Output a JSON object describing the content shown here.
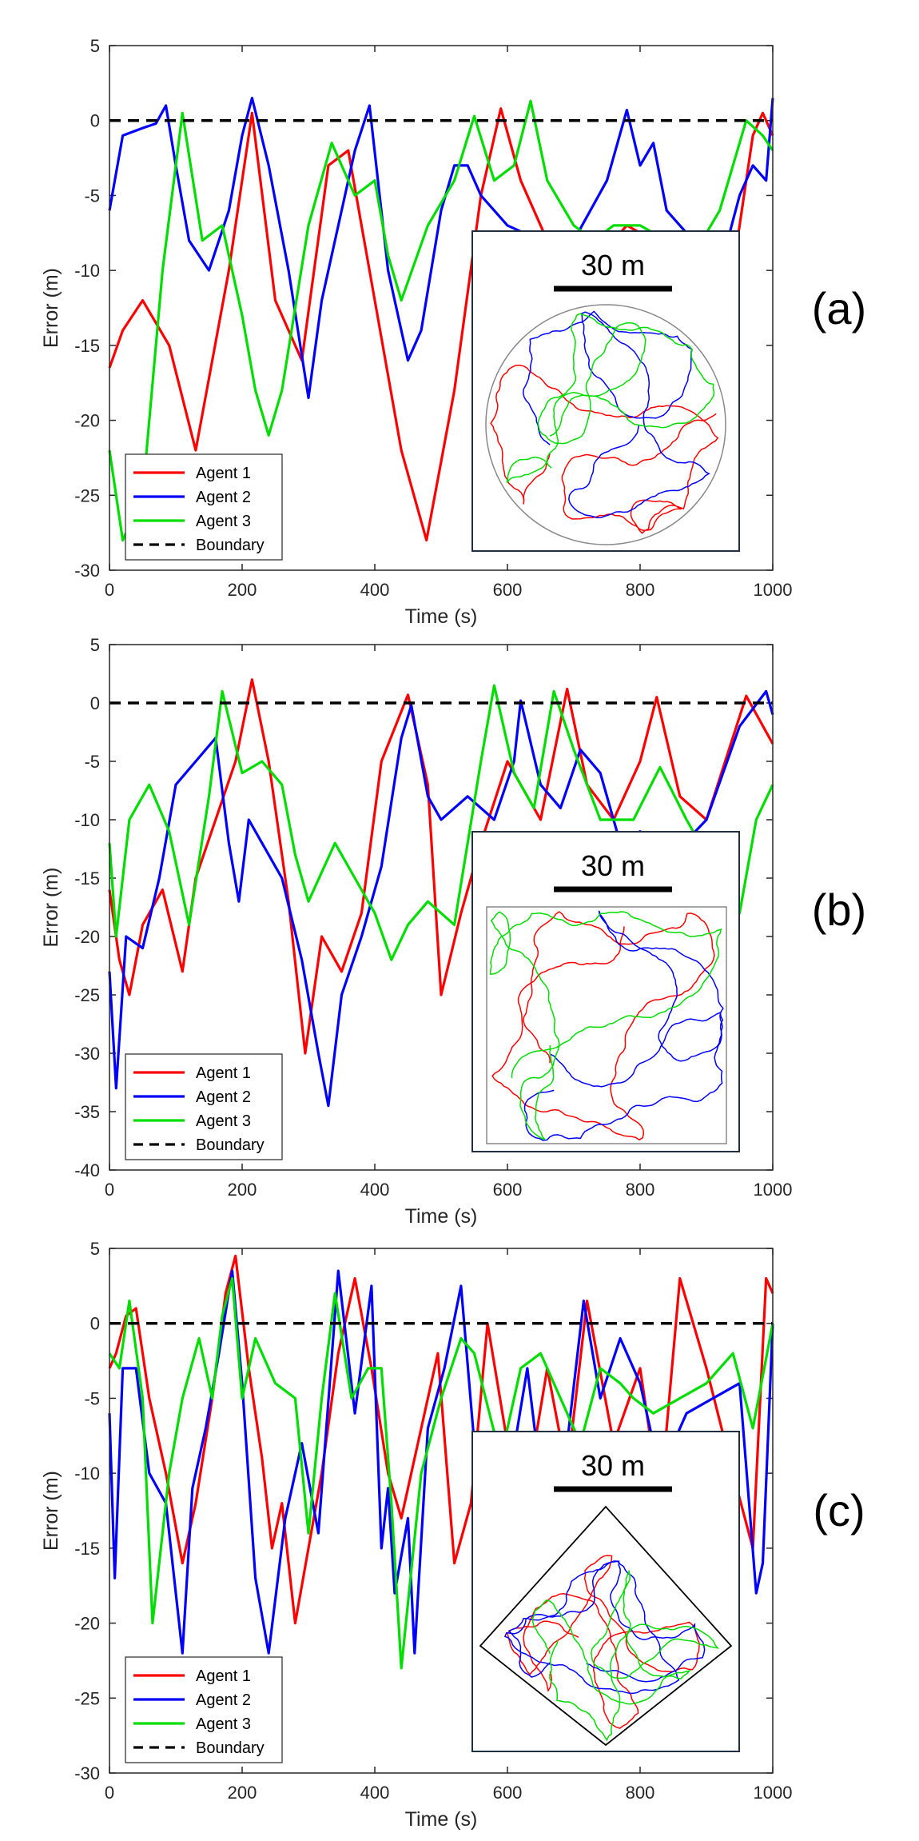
{
  "chart_data": [
    {
      "type": "line",
      "panel_label": "(a)",
      "xlabel": "Time (s)",
      "ylabel": "Error (m)",
      "xlim": [
        0,
        1000
      ],
      "ylim": [
        -30,
        5
      ],
      "xticks": [
        0,
        200,
        400,
        600,
        800,
        1000
      ],
      "yticks": [
        5,
        0,
        -5,
        -10,
        -15,
        -20,
        -25,
        -30
      ],
      "boundary": 0,
      "legend": [
        "Agent 1",
        "Agent 2",
        "Agent 3",
        "Boundary"
      ],
      "inset": {
        "scale_label": "30 m",
        "shape": "circle"
      },
      "series": [
        {
          "name": "Agent 1",
          "color": "#ff0000",
          "x": [
            0,
            20,
            50,
            90,
            130,
            180,
            215,
            250,
            290,
            330,
            360,
            400,
            440,
            478,
            520,
            560,
            590,
            620,
            660,
            700,
            740,
            780,
            820,
            860,
            900,
            940,
            970,
            985,
            1000
          ],
          "y": [
            -16.5,
            -14,
            -12,
            -15,
            -22,
            -10,
            0.5,
            -12,
            -16,
            -3,
            -2,
            -12,
            -22,
            -28,
            -18,
            -5,
            0.8,
            -4,
            -8,
            -10,
            -9,
            -7,
            -8,
            -12,
            -14,
            -10,
            -1,
            0.5,
            -1
          ]
        },
        {
          "name": "Agent 2",
          "color": "#0000ff",
          "x": [
            0,
            20,
            50,
            70,
            85,
            100,
            120,
            150,
            180,
            200,
            215,
            240,
            270,
            300,
            320,
            350,
            370,
            392,
            420,
            450,
            470,
            500,
            520,
            540,
            560,
            600,
            650,
            700,
            750,
            780,
            800,
            820,
            840,
            880,
            920,
            950,
            970,
            990,
            1000
          ],
          "y": [
            -6,
            -1,
            -0.5,
            -0.2,
            1,
            -3,
            -8,
            -10,
            -6,
            -1,
            1.5,
            -3,
            -10,
            -18.5,
            -12,
            -6,
            -2,
            1,
            -10,
            -16,
            -14,
            -6,
            -3,
            -3,
            -5,
            -7,
            -8,
            -8,
            -4,
            0.7,
            -3,
            -1.5,
            -6,
            -8,
            -10,
            -5,
            -3,
            -4,
            1.5
          ]
        },
        {
          "name": "Agent 3",
          "color": "#00dd00",
          "x": [
            0,
            20,
            50,
            80,
            110,
            140,
            170,
            200,
            220,
            240,
            260,
            300,
            335,
            370,
            400,
            420,
            440,
            480,
            520,
            550,
            580,
            610,
            635,
            660,
            700,
            730,
            760,
            800,
            840,
            880,
            920,
            960,
            985,
            1000
          ],
          "y": [
            -22,
            -28,
            -25,
            -10,
            0.5,
            -8,
            -7,
            -13,
            -18,
            -21,
            -18,
            -7,
            -1.5,
            -5,
            -4,
            -9,
            -12,
            -7,
            -4,
            0.3,
            -4,
            -3,
            1.3,
            -4,
            -7,
            -8,
            -7,
            -7,
            -8,
            -9,
            -6,
            0,
            -1,
            -2
          ]
        }
      ]
    },
    {
      "type": "line",
      "panel_label": "(b)",
      "xlabel": "Time (s)",
      "ylabel": "Error (m)",
      "xlim": [
        0,
        1000
      ],
      "ylim": [
        -40,
        5
      ],
      "xticks": [
        0,
        200,
        400,
        600,
        800,
        1000
      ],
      "yticks": [
        5,
        0,
        -5,
        -10,
        -15,
        -20,
        -25,
        -30,
        -35,
        -40
      ],
      "boundary": 0,
      "legend": [
        "Agent 1",
        "Agent 2",
        "Agent 3",
        "Boundary"
      ],
      "inset": {
        "scale_label": "30 m",
        "shape": "square"
      },
      "series": [
        {
          "name": "Agent 1",
          "color": "#ff0000",
          "x": [
            0,
            15,
            30,
            50,
            80,
            110,
            130,
            160,
            190,
            215,
            240,
            270,
            295,
            320,
            350,
            380,
            410,
            450,
            480,
            500,
            530,
            560,
            600,
            650,
            690,
            720,
            760,
            800,
            825,
            860,
            900,
            960,
            1000
          ],
          "y": [
            -16,
            -22,
            -25,
            -19,
            -16,
            -23,
            -15,
            -10,
            -5,
            2,
            -5,
            -17,
            -30,
            -20,
            -23,
            -18,
            -5,
            0.7,
            -7,
            -25,
            -18,
            -12,
            -5,
            -10,
            1.2,
            -7,
            -10,
            -5,
            0.5,
            -8,
            -10,
            0.6,
            -3.5
          ]
        },
        {
          "name": "Agent 2",
          "color": "#0000ff",
          "x": [
            0,
            10,
            25,
            50,
            75,
            100,
            130,
            160,
            180,
            195,
            210,
            230,
            260,
            290,
            315,
            330,
            350,
            380,
            410,
            440,
            455,
            480,
            500,
            540,
            580,
            610,
            620,
            650,
            680,
            710,
            740,
            770,
            800,
            850,
            900,
            950,
            990,
            1000
          ],
          "y": [
            -23,
            -33,
            -20,
            -21,
            -15,
            -7,
            -5,
            -3,
            -12,
            -17,
            -10,
            -12,
            -15,
            -22,
            -30,
            -34.5,
            -25,
            -20,
            -14,
            -3,
            -0.2,
            -8,
            -10,
            -8,
            -10,
            -5,
            0.2,
            -7,
            -9,
            -4,
            -6,
            -12,
            -11,
            -13,
            -10,
            -2,
            1,
            -1
          ]
        },
        {
          "name": "Agent 3",
          "color": "#00dd00",
          "x": [
            0,
            10,
            30,
            60,
            90,
            120,
            150,
            170,
            200,
            230,
            260,
            280,
            300,
            340,
            370,
            400,
            425,
            450,
            480,
            520,
            560,
            580,
            610,
            640,
            670,
            700,
            740,
            790,
            830,
            870,
            920,
            950,
            975,
            1000
          ],
          "y": [
            -12,
            -20,
            -10,
            -7,
            -11,
            -19,
            -8,
            1,
            -6,
            -5,
            -7,
            -13,
            -17,
            -12,
            -15,
            -18,
            -22,
            -19,
            -17,
            -19,
            -5,
            1.5,
            -6,
            -9,
            1,
            -4,
            -10,
            -10,
            -5.5,
            -10,
            -15,
            -18,
            -10,
            -7
          ]
        }
      ]
    },
    {
      "type": "line",
      "panel_label": "(c)",
      "xlabel": "Time (s)",
      "ylabel": "Error (m)",
      "xlim": [
        0,
        1000
      ],
      "ylim": [
        -30,
        5
      ],
      "xticks": [
        0,
        200,
        400,
        600,
        800,
        1000
      ],
      "yticks": [
        5,
        0,
        -5,
        -10,
        -15,
        -20,
        -25,
        -30
      ],
      "boundary": 0,
      "legend": [
        "Agent 1",
        "Agent 2",
        "Agent 3",
        "Boundary"
      ],
      "inset": {
        "scale_label": "30 m",
        "shape": "diamond"
      },
      "series": [
        {
          "name": "Agent 1",
          "color": "#ff0000",
          "x": [
            0,
            10,
            25,
            40,
            60,
            85,
            110,
            130,
            155,
            175,
            190,
            210,
            230,
            245,
            260,
            280,
            300,
            320,
            345,
            370,
            395,
            420,
            440,
            470,
            495,
            520,
            545,
            570,
            600,
            630,
            660,
            690,
            720,
            760,
            800,
            830,
            860,
            900,
            940,
            970,
            990,
            1000
          ],
          "y": [
            -3,
            -2,
            0.5,
            1,
            -5,
            -10,
            -16,
            -12,
            -5,
            2,
            4.5,
            -3,
            -9,
            -15,
            -12,
            -20,
            -15,
            -10,
            -2,
            3,
            -3,
            -10,
            -13,
            -7,
            -2,
            -16,
            -12,
            0,
            -8,
            -11,
            -3,
            -10,
            1.5,
            -8,
            -3,
            -12,
            3,
            -3,
            -10,
            -15,
            3,
            2
          ]
        },
        {
          "name": "Agent 2",
          "color": "#0000ff",
          "x": [
            0,
            8,
            20,
            40,
            60,
            85,
            110,
            125,
            145,
            165,
            185,
            200,
            220,
            240,
            265,
            290,
            315,
            345,
            370,
            395,
            410,
            420,
            430,
            450,
            460,
            480,
            505,
            530,
            550,
            575,
            600,
            630,
            660,
            690,
            715,
            740,
            770,
            800,
            830,
            870,
            910,
            950,
            975,
            985,
            1000
          ],
          "y": [
            -6,
            -17,
            -3,
            -3,
            -10,
            -12,
            -22,
            -11,
            -7,
            -2,
            3.5,
            -4,
            -17,
            -22,
            -13,
            -8,
            -14,
            3.5,
            -6,
            2.5,
            -15,
            -11,
            -18,
            -13,
            -22,
            -7,
            -3,
            2.5,
            -8,
            -14,
            -11,
            -3,
            -14,
            -8,
            1.5,
            -5,
            -1,
            -4,
            -10,
            -6,
            -5,
            -4,
            -18,
            -16,
            0
          ]
        },
        {
          "name": "Agent 3",
          "color": "#00dd00",
          "x": [
            0,
            15,
            30,
            50,
            65,
            90,
            110,
            135,
            155,
            170,
            185,
            200,
            220,
            250,
            280,
            300,
            320,
            340,
            365,
            390,
            410,
            425,
            440,
            470,
            500,
            530,
            550,
            590,
            620,
            650,
            680,
            710,
            740,
            770,
            790,
            820,
            860,
            900,
            940,
            970,
            1000
          ],
          "y": [
            -2,
            -3,
            1.5,
            -5,
            -20,
            -10,
            -5,
            -1,
            -5,
            0.5,
            3,
            -5,
            -1,
            -4,
            -5,
            -14,
            -5,
            2,
            -5,
            -3,
            -3,
            -12,
            -23,
            -10,
            -5,
            -1,
            -2,
            -9,
            -3,
            -2,
            -5,
            -8,
            -3,
            -4,
            -5,
            -6,
            -5,
            -4,
            -2,
            -7,
            0
          ]
        }
      ]
    }
  ]
}
